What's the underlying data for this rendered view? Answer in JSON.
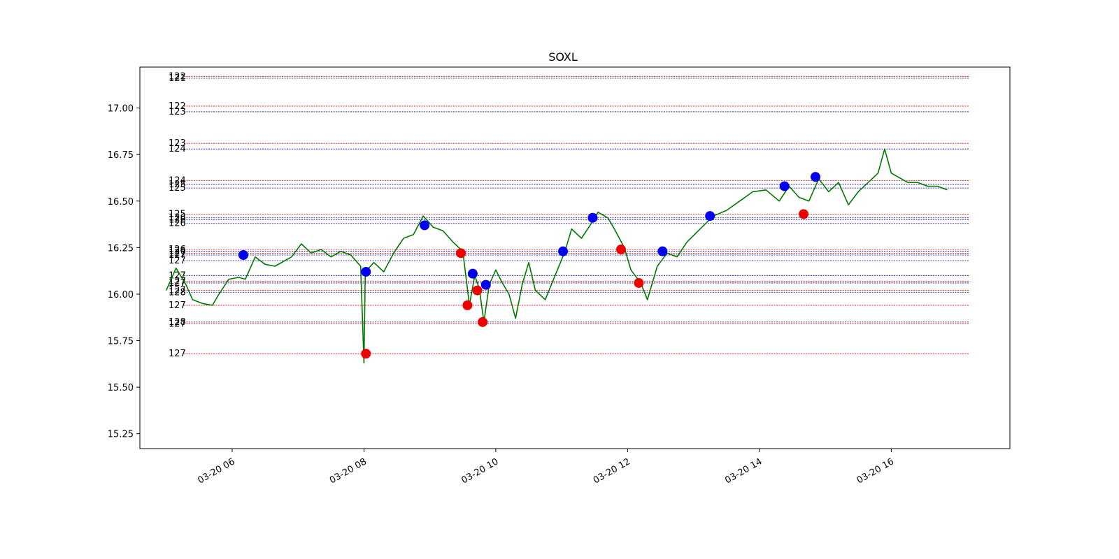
{
  "chart_data": {
    "type": "line",
    "title": "SOXL",
    "xlabel": "",
    "ylabel": "",
    "ylim": [
      15.17,
      17.22
    ],
    "xlim_hours": [
      4.6,
      17.8
    ],
    "grid": false,
    "legend": "none",
    "x_ticks": [
      {
        "hour": 6,
        "label": "03-20 06"
      },
      {
        "hour": 8,
        "label": "03-20 08"
      },
      {
        "hour": 10,
        "label": "03-20 10"
      },
      {
        "hour": 12,
        "label": "03-20 12"
      },
      {
        "hour": 14,
        "label": "03-20 14"
      },
      {
        "hour": 16,
        "label": "03-20 16"
      }
    ],
    "y_ticks": [
      {
        "value": 15.25,
        "label": "15.25"
      },
      {
        "value": 15.5,
        "label": "15.50"
      },
      {
        "value": 15.75,
        "label": "15.75"
      },
      {
        "value": 16.0,
        "label": "16.00"
      },
      {
        "value": 16.25,
        "label": "16.25"
      },
      {
        "value": 16.5,
        "label": "16.50"
      },
      {
        "value": 16.75,
        "label": "16.75"
      },
      {
        "value": 17.0,
        "label": "17.00"
      }
    ],
    "series": [
      {
        "color": "#007700",
        "points": [
          [
            5.0,
            16.02
          ],
          [
            5.15,
            16.14
          ],
          [
            5.3,
            16.05
          ],
          [
            5.4,
            15.97
          ],
          [
            5.55,
            15.95
          ],
          [
            5.7,
            15.94
          ],
          [
            5.8,
            16.0
          ],
          [
            5.95,
            16.08
          ],
          [
            6.1,
            16.09
          ],
          [
            6.2,
            16.08
          ],
          [
            6.35,
            16.2
          ],
          [
            6.5,
            16.16
          ],
          [
            6.65,
            16.15
          ],
          [
            6.8,
            16.18
          ],
          [
            6.9,
            16.2
          ],
          [
            7.05,
            16.27
          ],
          [
            7.2,
            16.22
          ],
          [
            7.35,
            16.24
          ],
          [
            7.5,
            16.2
          ],
          [
            7.65,
            16.23
          ],
          [
            7.8,
            16.21
          ],
          [
            7.95,
            16.15
          ],
          [
            8.0,
            15.63
          ],
          [
            8.02,
            16.12
          ],
          [
            8.15,
            16.17
          ],
          [
            8.3,
            16.12
          ],
          [
            8.45,
            16.22
          ],
          [
            8.6,
            16.3
          ],
          [
            8.75,
            16.32
          ],
          [
            8.9,
            16.42
          ],
          [
            9.05,
            16.36
          ],
          [
            9.2,
            16.34
          ],
          [
            9.35,
            16.28
          ],
          [
            9.5,
            16.23
          ],
          [
            9.6,
            15.94
          ],
          [
            9.68,
            16.1
          ],
          [
            9.75,
            16.03
          ],
          [
            9.82,
            15.85
          ],
          [
            9.9,
            16.05
          ],
          [
            10.0,
            16.13
          ],
          [
            10.1,
            16.06
          ],
          [
            10.2,
            16.0
          ],
          [
            10.3,
            15.87
          ],
          [
            10.4,
            16.05
          ],
          [
            10.5,
            16.17
          ],
          [
            10.6,
            16.02
          ],
          [
            10.75,
            15.97
          ],
          [
            10.9,
            16.1
          ],
          [
            11.05,
            16.23
          ],
          [
            11.15,
            16.35
          ],
          [
            11.3,
            16.3
          ],
          [
            11.45,
            16.38
          ],
          [
            11.55,
            16.44
          ],
          [
            11.7,
            16.41
          ],
          [
            11.8,
            16.35
          ],
          [
            11.95,
            16.25
          ],
          [
            12.05,
            16.13
          ],
          [
            12.2,
            16.06
          ],
          [
            12.3,
            15.97
          ],
          [
            12.45,
            16.15
          ],
          [
            12.6,
            16.22
          ],
          [
            12.75,
            16.2
          ],
          [
            12.9,
            16.28
          ],
          [
            13.1,
            16.35
          ],
          [
            13.3,
            16.42
          ],
          [
            13.5,
            16.45
          ],
          [
            13.7,
            16.5
          ],
          [
            13.9,
            16.55
          ],
          [
            14.1,
            16.56
          ],
          [
            14.3,
            16.5
          ],
          [
            14.45,
            16.58
          ],
          [
            14.6,
            16.52
          ],
          [
            14.75,
            16.5
          ],
          [
            14.9,
            16.62
          ],
          [
            15.05,
            16.55
          ],
          [
            15.2,
            16.6
          ],
          [
            15.35,
            16.48
          ],
          [
            15.5,
            16.55
          ],
          [
            15.65,
            16.6
          ],
          [
            15.8,
            16.65
          ],
          [
            15.9,
            16.78
          ],
          [
            16.0,
            16.65
          ],
          [
            16.1,
            16.63
          ],
          [
            16.25,
            16.6
          ],
          [
            16.4,
            16.6
          ],
          [
            16.55,
            16.58
          ],
          [
            16.7,
            16.58
          ],
          [
            16.85,
            16.56
          ]
        ]
      }
    ],
    "levels": [
      {
        "value": 17.17,
        "color": "#dd0000",
        "label": "122"
      },
      {
        "value": 17.16,
        "color": "#0000aa",
        "label": "121"
      },
      {
        "value": 17.01,
        "color": "#dd0000",
        "label": "122"
      },
      {
        "value": 16.98,
        "color": "#0000aa",
        "label": "123"
      },
      {
        "value": 16.81,
        "color": "#dd0000",
        "label": "123"
      },
      {
        "value": 16.78,
        "color": "#0000aa",
        "label": "124"
      },
      {
        "value": 16.61,
        "color": "#dd0000",
        "label": "124"
      },
      {
        "value": 16.59,
        "color": "#0000aa",
        "label": "125"
      },
      {
        "value": 16.57,
        "color": "#0000aa",
        "label": "125"
      },
      {
        "value": 16.43,
        "color": "#dd0000",
        "label": "125"
      },
      {
        "value": 16.41,
        "color": "#0000aa",
        "label": "126"
      },
      {
        "value": 16.4,
        "color": "#0000aa",
        "label": "126"
      },
      {
        "value": 16.38,
        "color": "#0000aa",
        "label": "126"
      },
      {
        "value": 16.24,
        "color": "#dd0000",
        "label": "126"
      },
      {
        "value": 16.23,
        "color": "#0000aa",
        "label": "126"
      },
      {
        "value": 16.22,
        "color": "#dd0000",
        "label": "127"
      },
      {
        "value": 16.21,
        "color": "#0000aa",
        "label": "127"
      },
      {
        "value": 16.18,
        "color": "#0000aa",
        "label": "127"
      },
      {
        "value": 16.1,
        "color": "#0000aa",
        "label": "127"
      },
      {
        "value": 16.07,
        "color": "#dd0000",
        "label": "127"
      },
      {
        "value": 16.06,
        "color": "#0000aa",
        "label": "127"
      },
      {
        "value": 16.02,
        "color": "#dd0000",
        "label": "127"
      },
      {
        "value": 16.01,
        "color": "#0000aa",
        "label": "128"
      },
      {
        "value": 15.94,
        "color": "#dd0000",
        "label": "127"
      },
      {
        "value": 15.85,
        "color": "#0000aa",
        "label": "128"
      },
      {
        "value": 15.84,
        "color": "#dd0000",
        "label": "127"
      },
      {
        "value": 15.68,
        "color": "#dd0000",
        "label": "127"
      }
    ],
    "markers": [
      {
        "x": 6.17,
        "y": 16.21,
        "color": "#0000ee"
      },
      {
        "x": 8.03,
        "y": 16.12,
        "color": "#0000ee"
      },
      {
        "x": 8.03,
        "y": 15.68,
        "color": "#ee0000"
      },
      {
        "x": 8.92,
        "y": 16.37,
        "color": "#0000ee"
      },
      {
        "x": 9.47,
        "y": 16.22,
        "color": "#ee0000"
      },
      {
        "x": 9.57,
        "y": 15.94,
        "color": "#ee0000"
      },
      {
        "x": 9.65,
        "y": 16.11,
        "color": "#0000ee"
      },
      {
        "x": 9.72,
        "y": 16.02,
        "color": "#ee0000"
      },
      {
        "x": 9.8,
        "y": 15.85,
        "color": "#ee0000"
      },
      {
        "x": 9.85,
        "y": 16.05,
        "color": "#0000ee"
      },
      {
        "x": 11.02,
        "y": 16.23,
        "color": "#0000ee"
      },
      {
        "x": 11.47,
        "y": 16.41,
        "color": "#0000ee"
      },
      {
        "x": 11.9,
        "y": 16.24,
        "color": "#ee0000"
      },
      {
        "x": 12.17,
        "y": 16.06,
        "color": "#ee0000"
      },
      {
        "x": 12.53,
        "y": 16.23,
        "color": "#0000ee"
      },
      {
        "x": 13.25,
        "y": 16.42,
        "color": "#0000ee"
      },
      {
        "x": 14.38,
        "y": 16.58,
        "color": "#0000ee"
      },
      {
        "x": 14.67,
        "y": 16.43,
        "color": "#ee0000"
      },
      {
        "x": 14.85,
        "y": 16.63,
        "color": "#0000ee"
      }
    ]
  }
}
